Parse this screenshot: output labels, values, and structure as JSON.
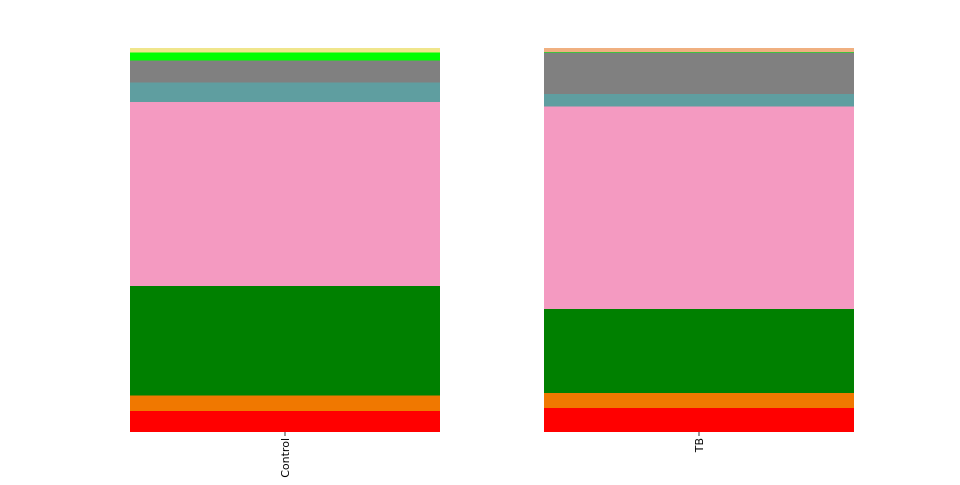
{
  "chart_data": [
    {
      "type": "bar",
      "stacked": true,
      "normalized": true,
      "categories": [
        "Control"
      ],
      "series": [
        {
          "color": "#ff0000",
          "values": [
            0.055
          ]
        },
        {
          "color": "#f07800",
          "values": [
            0.04
          ]
        },
        {
          "color": "#008000",
          "values": [
            0.285
          ]
        },
        {
          "color": "#f49ac1",
          "values": [
            0.48
          ]
        },
        {
          "color": "#5f9ea0",
          "values": [
            0.05
          ]
        },
        {
          "color": "#808080",
          "values": [
            0.058
          ]
        },
        {
          "color": "#00ff00",
          "values": [
            0.02
          ]
        },
        {
          "color": "#f0e68c",
          "values": [
            0.012
          ]
        }
      ],
      "ylim": [
        0,
        1
      ],
      "grid": false,
      "legend": false
    },
    {
      "type": "bar",
      "stacked": true,
      "normalized": true,
      "categories": [
        "TB"
      ],
      "series": [
        {
          "color": "#ff0000",
          "values": [
            0.062
          ]
        },
        {
          "color": "#f07800",
          "values": [
            0.04
          ]
        },
        {
          "color": "#008000",
          "values": [
            0.218
          ]
        },
        {
          "color": "#f49ac1",
          "values": [
            0.528
          ]
        },
        {
          "color": "#5f9ea0",
          "values": [
            0.032
          ]
        },
        {
          "color": "#808080",
          "values": [
            0.108
          ]
        },
        {
          "color": "#00ff00",
          "values": [
            0.002
          ]
        },
        {
          "color": "#f0b080",
          "values": [
            0.01
          ]
        }
      ],
      "ylim": [
        0,
        1
      ],
      "grid": false,
      "legend": false
    }
  ]
}
